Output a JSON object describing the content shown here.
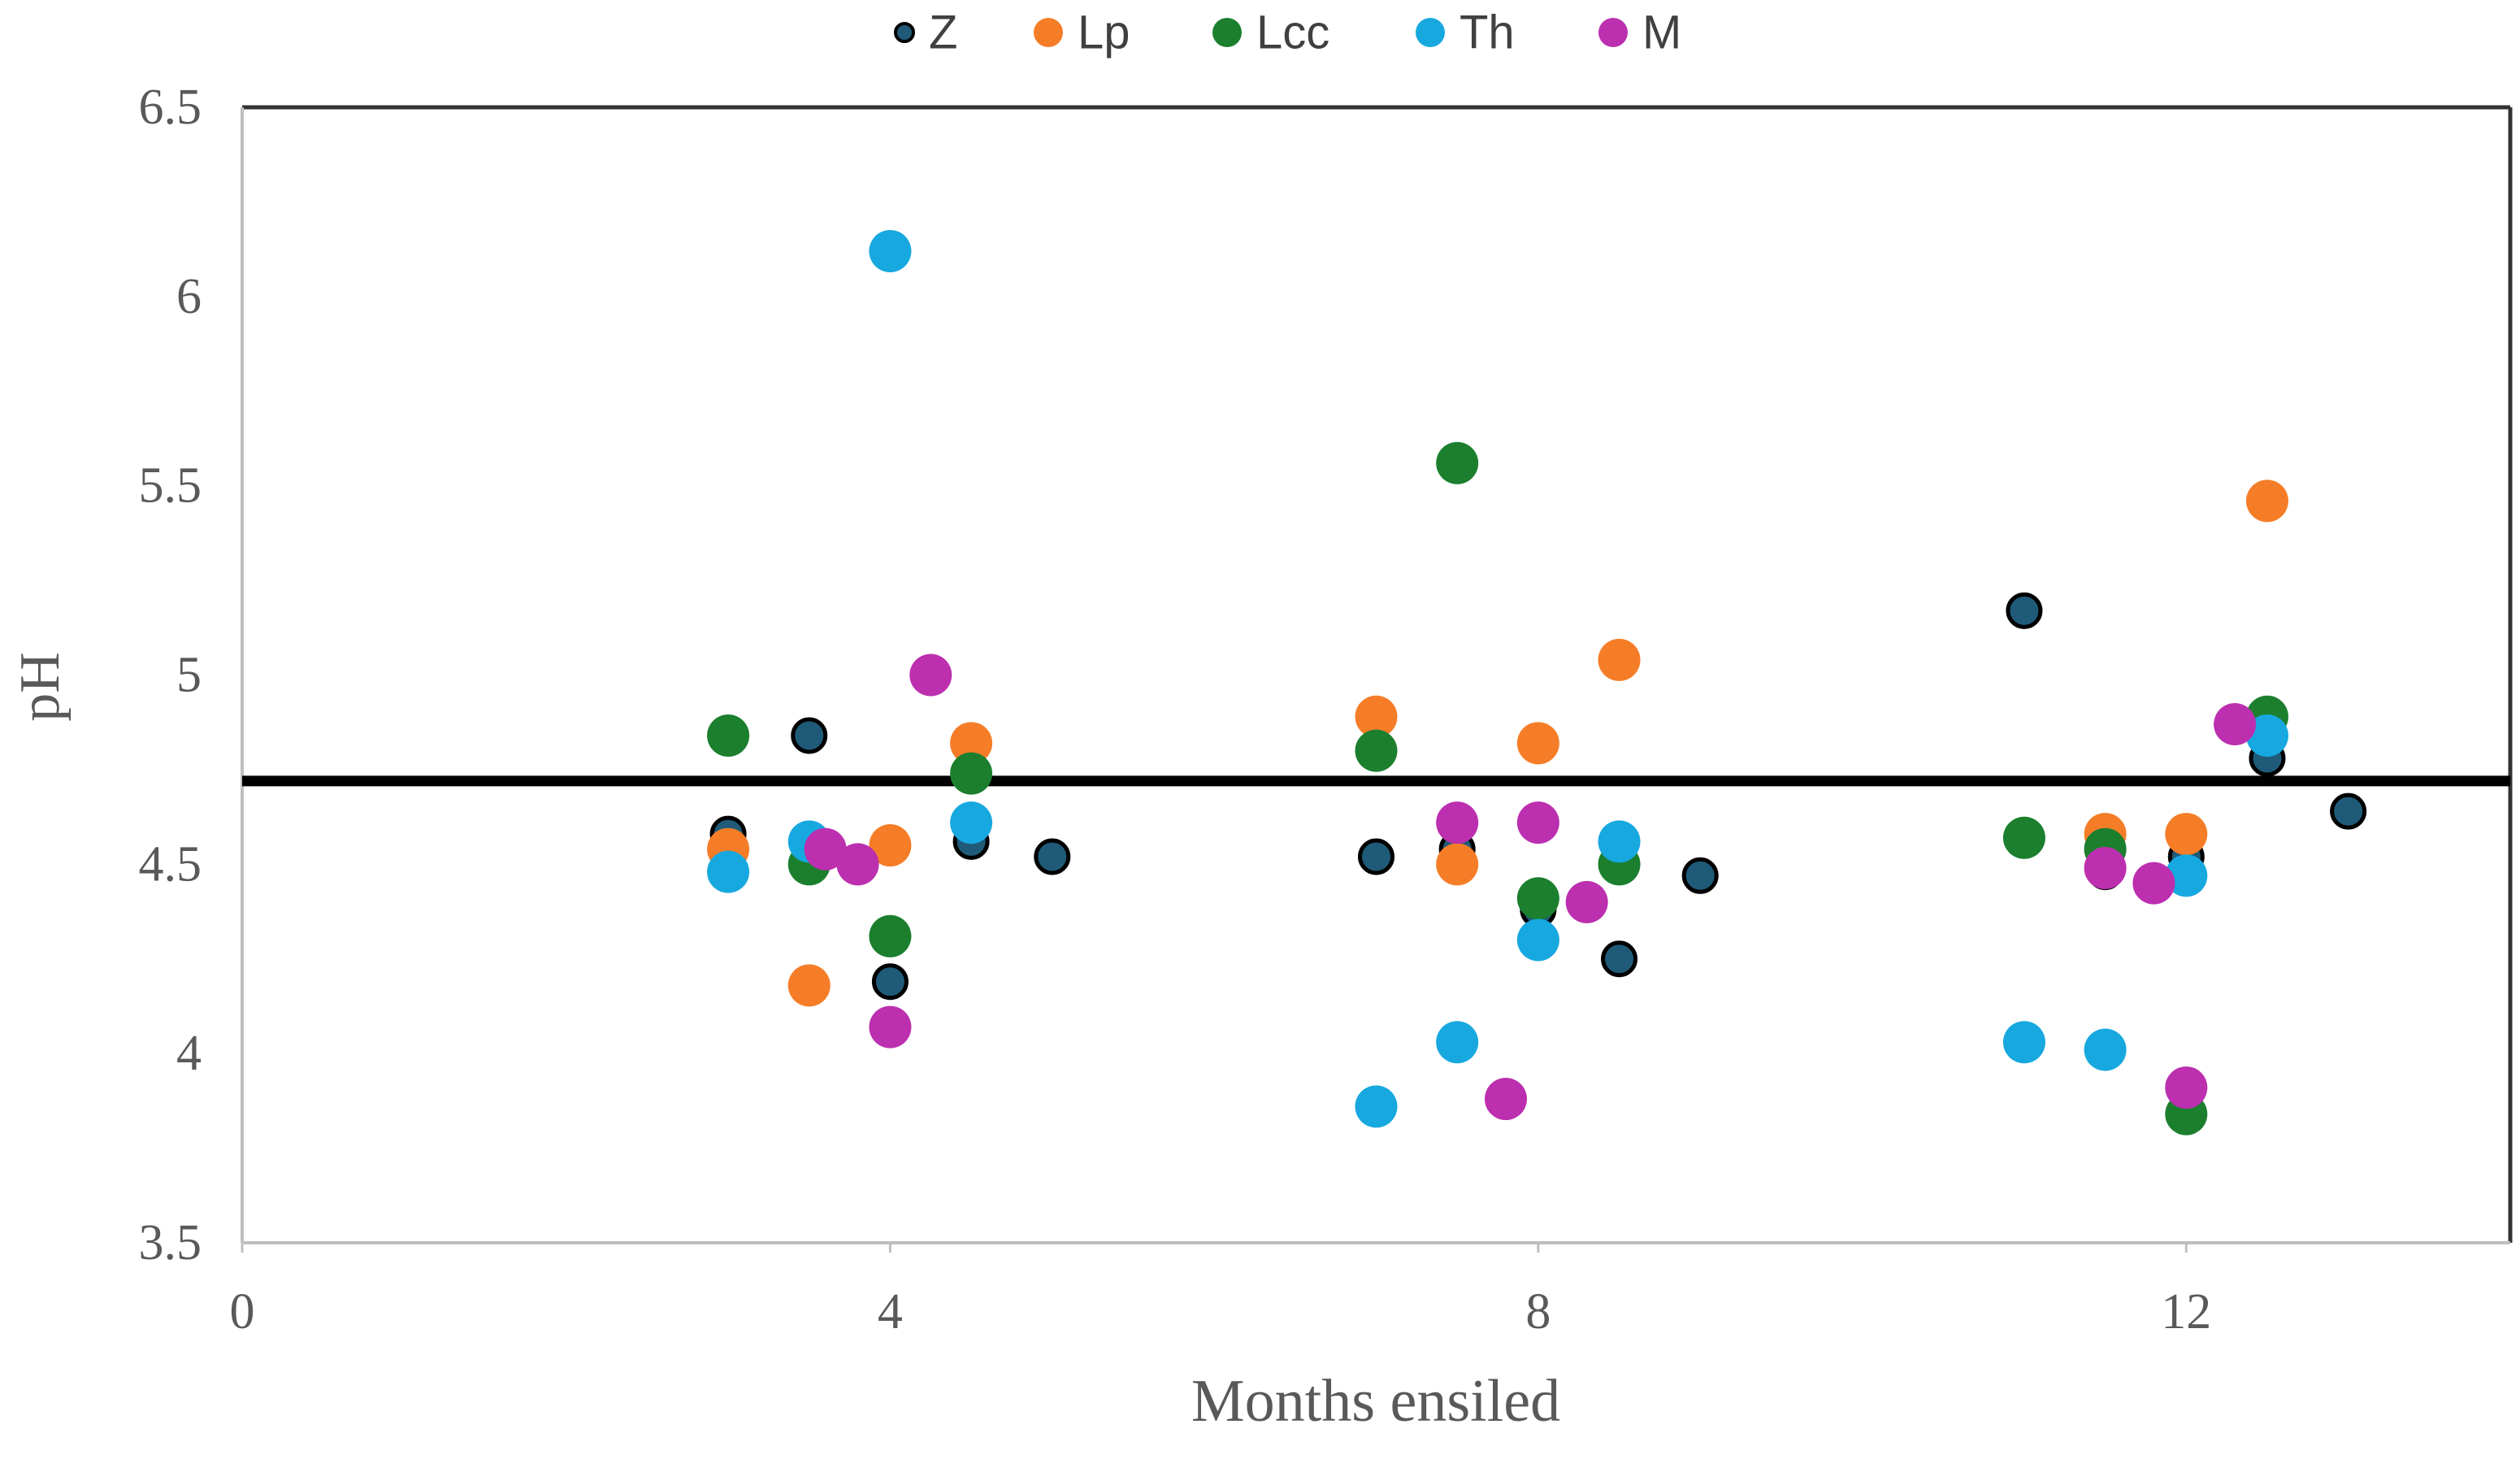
{
  "figure": {
    "background": "#ffffff",
    "axis_line_color": "#BFBFBF",
    "frame_border_color": "#333333",
    "text_color": "#595959"
  },
  "legend": {
    "position": "top-center",
    "labels": [
      "Z",
      "Lp",
      "Lcc",
      "Th",
      "M"
    ]
  },
  "chart_data": {
    "type": "scatter",
    "title": "",
    "xlabel": "Months ensiled",
    "ylabel": "pH",
    "xlim": [
      0,
      14
    ],
    "ylim": [
      3.5,
      6.5
    ],
    "x_ticks": [
      0,
      4,
      8,
      12
    ],
    "y_ticks": [
      3.5,
      4,
      4.5,
      5,
      5.5,
      6,
      6.5
    ],
    "grid": false,
    "legend_position": "top",
    "reference_line": {
      "y": 4.72,
      "color": "#000000"
    },
    "series": [
      {
        "name": "Z",
        "color": "#1F5B78",
        "outlined": true,
        "outline_color": "#000000",
        "points": [
          [
            3.0,
            4.58
          ],
          [
            3.5,
            4.84
          ],
          [
            4.0,
            4.19
          ],
          [
            4.5,
            4.56
          ],
          [
            5.0,
            4.52
          ],
          [
            7.0,
            4.52
          ],
          [
            7.5,
            4.54
          ],
          [
            8.0,
            4.38
          ],
          [
            8.5,
            4.25
          ],
          [
            9.0,
            4.47
          ],
          [
            11.0,
            5.17
          ],
          [
            11.5,
            4.48
          ],
          [
            12.0,
            4.52
          ],
          [
            12.5,
            4.78
          ],
          [
            13.0,
            4.64
          ]
        ]
      },
      {
        "name": "Lp",
        "color": "#F57D28",
        "outlined": false,
        "points": [
          [
            3.0,
            4.54
          ],
          [
            3.5,
            4.18
          ],
          [
            4.0,
            4.55
          ],
          [
            4.5,
            4.82
          ],
          [
            7.0,
            4.89
          ],
          [
            7.5,
            4.5
          ],
          [
            8.0,
            4.82
          ],
          [
            8.5,
            5.04
          ],
          [
            11.5,
            4.58
          ],
          [
            12.0,
            4.58
          ],
          [
            12.5,
            5.46
          ]
        ]
      },
      {
        "name": "Lcc",
        "color": "#1B7F2E",
        "outlined": false,
        "points": [
          [
            3.0,
            4.84
          ],
          [
            3.5,
            4.5
          ],
          [
            4.0,
            4.31
          ],
          [
            4.5,
            4.74
          ],
          [
            7.0,
            4.8
          ],
          [
            7.5,
            5.56
          ],
          [
            8.0,
            4.41
          ],
          [
            8.5,
            4.5
          ],
          [
            11.0,
            4.57
          ],
          [
            11.5,
            4.54
          ],
          [
            12.0,
            3.84
          ],
          [
            12.5,
            4.89
          ]
        ]
      },
      {
        "name": "Th",
        "color": "#17A8E0",
        "outlined": false,
        "points": [
          [
            3.0,
            4.48
          ],
          [
            3.5,
            4.56
          ],
          [
            4.0,
            6.12
          ],
          [
            4.5,
            4.61
          ],
          [
            7.0,
            3.86
          ],
          [
            7.5,
            4.03
          ],
          [
            8.0,
            4.3
          ],
          [
            8.5,
            4.56
          ],
          [
            11.0,
            4.03
          ],
          [
            11.5,
            4.01
          ],
          [
            12.0,
            4.47
          ],
          [
            12.5,
            4.84
          ]
        ]
      },
      {
        "name": "M",
        "color": "#BC2FAF",
        "outlined": false,
        "points": [
          [
            3.6,
            4.54
          ],
          [
            3.8,
            4.5
          ],
          [
            4.0,
            4.07
          ],
          [
            4.25,
            5.0
          ],
          [
            7.5,
            4.61
          ],
          [
            7.8,
            3.88
          ],
          [
            8.0,
            4.61
          ],
          [
            8.3,
            4.4
          ],
          [
            11.5,
            4.49
          ],
          [
            11.8,
            4.45
          ],
          [
            12.0,
            3.91
          ],
          [
            12.3,
            4.87
          ]
        ]
      }
    ]
  }
}
